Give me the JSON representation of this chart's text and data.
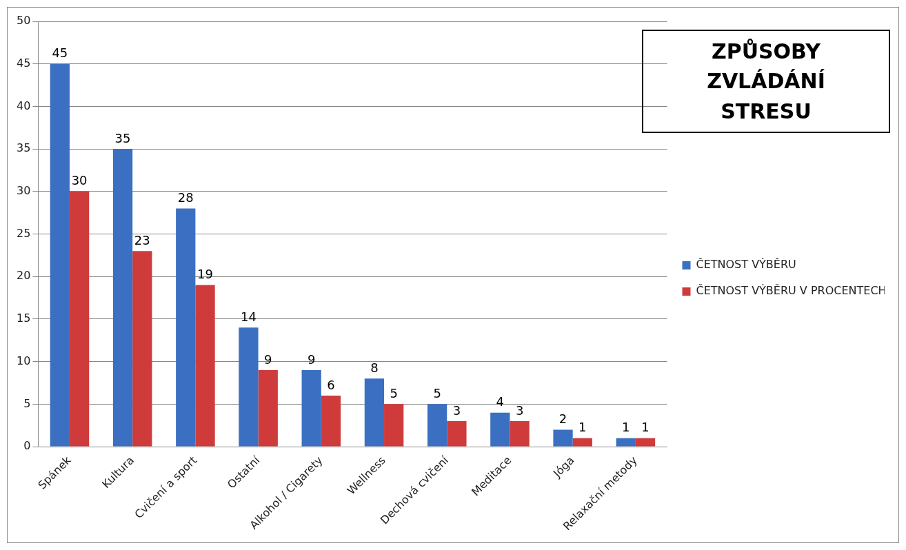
{
  "chart_data": {
    "type": "bar",
    "title": "ZPŮSOBY ZVLÁDÁNÍ STRESU",
    "categories": [
      "Spánek",
      "Kultura",
      "Cvičení a sport",
      "Ostatní",
      "Alkohol / Cigarety",
      "Wellness",
      "Dechová cvičení",
      "Meditace",
      "Jóga",
      "Relaxační metody"
    ],
    "series": [
      {
        "name": "ČETNOST VÝBĚRU",
        "color": "#3b6fc2",
        "values": [
          45,
          35,
          28,
          14,
          9,
          8,
          5,
          4,
          2,
          1
        ]
      },
      {
        "name": "ČETNOST VÝBĚRU V PROCENTECH",
        "color": "#cf3b3b",
        "values": [
          30,
          23,
          19,
          9,
          6,
          5,
          3,
          3,
          1,
          1
        ]
      }
    ],
    "ylim": [
      0,
      50
    ],
    "yticks": [
      0,
      5,
      10,
      15,
      20,
      25,
      30,
      35,
      40,
      45,
      50
    ],
    "grid": "y",
    "legend": "right",
    "data_labels": true
  }
}
